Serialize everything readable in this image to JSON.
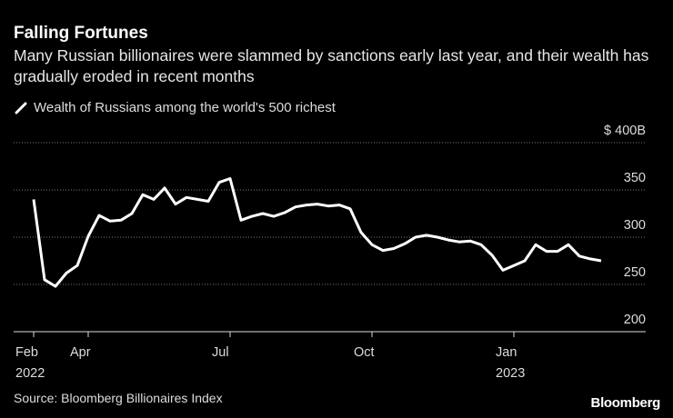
{
  "chart_data": {
    "type": "line",
    "title": "Falling Fortunes",
    "subtitle": "Many Russian billionaires were slammed by sanctions early last year, and their wealth has gradually eroded in recent months",
    "source": "Source: Bloomberg Billionaires Index",
    "brand": "Bloomberg",
    "categories": [
      "Feb\n2022",
      null,
      null,
      null,
      null,
      "Apr",
      null,
      null,
      null,
      null,
      null,
      null,
      null,
      null,
      null,
      null,
      null,
      null,
      "Jul",
      null,
      null,
      null,
      null,
      null,
      null,
      null,
      null,
      null,
      null,
      null,
      null,
      "Oct",
      null,
      null,
      null,
      null,
      null,
      null,
      null,
      null,
      null,
      null,
      null,
      null,
      "Jan\n2023",
      null,
      null,
      null,
      null,
      null,
      null,
      null,
      null
    ],
    "series": [
      {
        "name": "Wealth of Russians among the world's 500 richest",
        "color": "#ffffff",
        "values": [
          340,
          255,
          248,
          262,
          270,
          301,
          323,
          317,
          318,
          325,
          345,
          340,
          352,
          335,
          342,
          340,
          338,
          358,
          362,
          318,
          322,
          325,
          322,
          326,
          332,
          334,
          335,
          333,
          334,
          330,
          305,
          292,
          286,
          288,
          293,
          300,
          302,
          300,
          297,
          295,
          296,
          292,
          281,
          265,
          270,
          275,
          292,
          285,
          285,
          292,
          280,
          277,
          275
        ]
      }
    ],
    "ylim": [
      200,
      400
    ],
    "yticks": [
      200,
      250,
      300,
      350,
      {
        "value": 400,
        "label": "$ 400B"
      }
    ],
    "grid": true
  }
}
